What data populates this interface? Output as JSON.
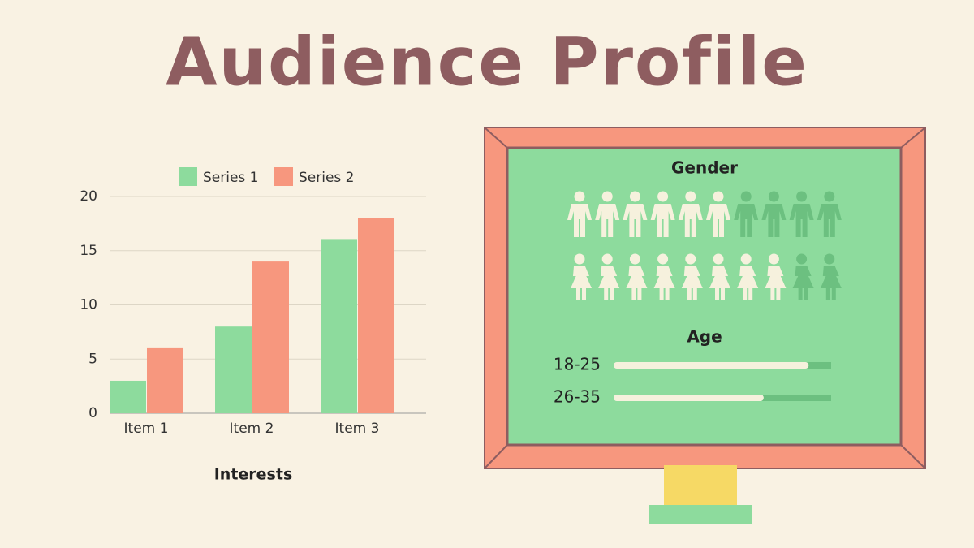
{
  "title": "Audience Profile",
  "chart_data": {
    "type": "bar",
    "x_label": "Interests",
    "categories": [
      "Item 1",
      "Item 2",
      "Item 3"
    ],
    "series": [
      {
        "name": "Series 1",
        "color": "#8ddb9d",
        "values": [
          3,
          8,
          16
        ]
      },
      {
        "name": "Series 2",
        "color": "#f7977e",
        "values": [
          6,
          14,
          18
        ]
      }
    ],
    "ylim": [
      0,
      20
    ],
    "yticks": [
      0,
      5,
      10,
      15,
      20
    ],
    "grid": true,
    "legend": "top"
  },
  "gender": {
    "title": "Gender",
    "men": {
      "highlighted": 6,
      "total": 10
    },
    "women": {
      "highlighted": 8,
      "total": 10
    }
  },
  "age": {
    "title": "Age",
    "xlim": [
      0,
      100
    ],
    "groups": [
      {
        "label": "18-25",
        "value": 88
      },
      {
        "label": "26-35",
        "value": 67
      }
    ]
  }
}
